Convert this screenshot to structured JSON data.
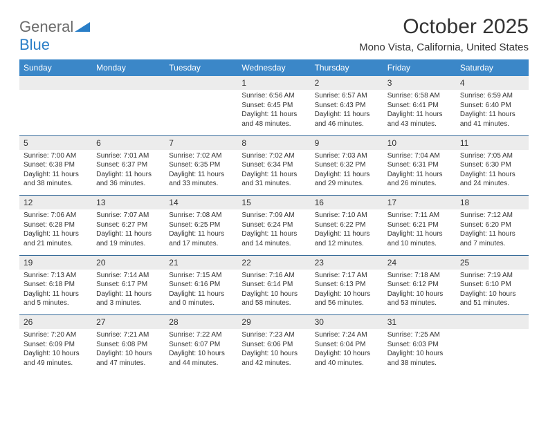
{
  "logo": {
    "text_gray": "General",
    "text_blue": "Blue",
    "gray_color": "#6b6b6b",
    "blue_color": "#2a7ec7"
  },
  "title": "October 2025",
  "location": "Mono Vista, California, United States",
  "colors": {
    "header_bg": "#3b87c8",
    "header_text": "#ffffff",
    "daynum_bg": "#ececec",
    "row_divider": "#2e6595",
    "text": "#333333",
    "background": "#ffffff"
  },
  "day_names": [
    "Sunday",
    "Monday",
    "Tuesday",
    "Wednesday",
    "Thursday",
    "Friday",
    "Saturday"
  ],
  "weeks": [
    [
      null,
      null,
      null,
      {
        "n": "1",
        "sr": "Sunrise: 6:56 AM",
        "ss": "Sunset: 6:45 PM",
        "d1": "Daylight: 11 hours",
        "d2": "and 48 minutes."
      },
      {
        "n": "2",
        "sr": "Sunrise: 6:57 AM",
        "ss": "Sunset: 6:43 PM",
        "d1": "Daylight: 11 hours",
        "d2": "and 46 minutes."
      },
      {
        "n": "3",
        "sr": "Sunrise: 6:58 AM",
        "ss": "Sunset: 6:41 PM",
        "d1": "Daylight: 11 hours",
        "d2": "and 43 minutes."
      },
      {
        "n": "4",
        "sr": "Sunrise: 6:59 AM",
        "ss": "Sunset: 6:40 PM",
        "d1": "Daylight: 11 hours",
        "d2": "and 41 minutes."
      }
    ],
    [
      {
        "n": "5",
        "sr": "Sunrise: 7:00 AM",
        "ss": "Sunset: 6:38 PM",
        "d1": "Daylight: 11 hours",
        "d2": "and 38 minutes."
      },
      {
        "n": "6",
        "sr": "Sunrise: 7:01 AM",
        "ss": "Sunset: 6:37 PM",
        "d1": "Daylight: 11 hours",
        "d2": "and 36 minutes."
      },
      {
        "n": "7",
        "sr": "Sunrise: 7:02 AM",
        "ss": "Sunset: 6:35 PM",
        "d1": "Daylight: 11 hours",
        "d2": "and 33 minutes."
      },
      {
        "n": "8",
        "sr": "Sunrise: 7:02 AM",
        "ss": "Sunset: 6:34 PM",
        "d1": "Daylight: 11 hours",
        "d2": "and 31 minutes."
      },
      {
        "n": "9",
        "sr": "Sunrise: 7:03 AM",
        "ss": "Sunset: 6:32 PM",
        "d1": "Daylight: 11 hours",
        "d2": "and 29 minutes."
      },
      {
        "n": "10",
        "sr": "Sunrise: 7:04 AM",
        "ss": "Sunset: 6:31 PM",
        "d1": "Daylight: 11 hours",
        "d2": "and 26 minutes."
      },
      {
        "n": "11",
        "sr": "Sunrise: 7:05 AM",
        "ss": "Sunset: 6:30 PM",
        "d1": "Daylight: 11 hours",
        "d2": "and 24 minutes."
      }
    ],
    [
      {
        "n": "12",
        "sr": "Sunrise: 7:06 AM",
        "ss": "Sunset: 6:28 PM",
        "d1": "Daylight: 11 hours",
        "d2": "and 21 minutes."
      },
      {
        "n": "13",
        "sr": "Sunrise: 7:07 AM",
        "ss": "Sunset: 6:27 PM",
        "d1": "Daylight: 11 hours",
        "d2": "and 19 minutes."
      },
      {
        "n": "14",
        "sr": "Sunrise: 7:08 AM",
        "ss": "Sunset: 6:25 PM",
        "d1": "Daylight: 11 hours",
        "d2": "and 17 minutes."
      },
      {
        "n": "15",
        "sr": "Sunrise: 7:09 AM",
        "ss": "Sunset: 6:24 PM",
        "d1": "Daylight: 11 hours",
        "d2": "and 14 minutes."
      },
      {
        "n": "16",
        "sr": "Sunrise: 7:10 AM",
        "ss": "Sunset: 6:22 PM",
        "d1": "Daylight: 11 hours",
        "d2": "and 12 minutes."
      },
      {
        "n": "17",
        "sr": "Sunrise: 7:11 AM",
        "ss": "Sunset: 6:21 PM",
        "d1": "Daylight: 11 hours",
        "d2": "and 10 minutes."
      },
      {
        "n": "18",
        "sr": "Sunrise: 7:12 AM",
        "ss": "Sunset: 6:20 PM",
        "d1": "Daylight: 11 hours",
        "d2": "and 7 minutes."
      }
    ],
    [
      {
        "n": "19",
        "sr": "Sunrise: 7:13 AM",
        "ss": "Sunset: 6:18 PM",
        "d1": "Daylight: 11 hours",
        "d2": "and 5 minutes."
      },
      {
        "n": "20",
        "sr": "Sunrise: 7:14 AM",
        "ss": "Sunset: 6:17 PM",
        "d1": "Daylight: 11 hours",
        "d2": "and 3 minutes."
      },
      {
        "n": "21",
        "sr": "Sunrise: 7:15 AM",
        "ss": "Sunset: 6:16 PM",
        "d1": "Daylight: 11 hours",
        "d2": "and 0 minutes."
      },
      {
        "n": "22",
        "sr": "Sunrise: 7:16 AM",
        "ss": "Sunset: 6:14 PM",
        "d1": "Daylight: 10 hours",
        "d2": "and 58 minutes."
      },
      {
        "n": "23",
        "sr": "Sunrise: 7:17 AM",
        "ss": "Sunset: 6:13 PM",
        "d1": "Daylight: 10 hours",
        "d2": "and 56 minutes."
      },
      {
        "n": "24",
        "sr": "Sunrise: 7:18 AM",
        "ss": "Sunset: 6:12 PM",
        "d1": "Daylight: 10 hours",
        "d2": "and 53 minutes."
      },
      {
        "n": "25",
        "sr": "Sunrise: 7:19 AM",
        "ss": "Sunset: 6:10 PM",
        "d1": "Daylight: 10 hours",
        "d2": "and 51 minutes."
      }
    ],
    [
      {
        "n": "26",
        "sr": "Sunrise: 7:20 AM",
        "ss": "Sunset: 6:09 PM",
        "d1": "Daylight: 10 hours",
        "d2": "and 49 minutes."
      },
      {
        "n": "27",
        "sr": "Sunrise: 7:21 AM",
        "ss": "Sunset: 6:08 PM",
        "d1": "Daylight: 10 hours",
        "d2": "and 47 minutes."
      },
      {
        "n": "28",
        "sr": "Sunrise: 7:22 AM",
        "ss": "Sunset: 6:07 PM",
        "d1": "Daylight: 10 hours",
        "d2": "and 44 minutes."
      },
      {
        "n": "29",
        "sr": "Sunrise: 7:23 AM",
        "ss": "Sunset: 6:06 PM",
        "d1": "Daylight: 10 hours",
        "d2": "and 42 minutes."
      },
      {
        "n": "30",
        "sr": "Sunrise: 7:24 AM",
        "ss": "Sunset: 6:04 PM",
        "d1": "Daylight: 10 hours",
        "d2": "and 40 minutes."
      },
      {
        "n": "31",
        "sr": "Sunrise: 7:25 AM",
        "ss": "Sunset: 6:03 PM",
        "d1": "Daylight: 10 hours",
        "d2": "and 38 minutes."
      },
      null
    ]
  ]
}
